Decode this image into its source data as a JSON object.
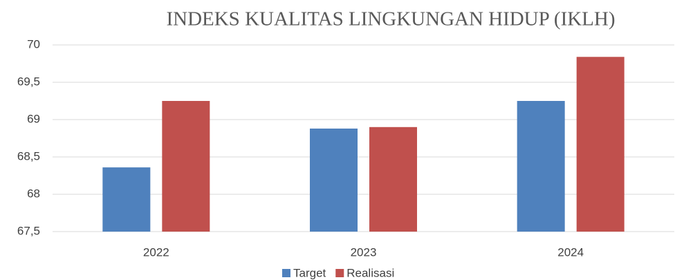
{
  "chart_data": {
    "type": "bar",
    "title": "INDEKS KUALITAS LINGKUNGAN HIDUP (IKLH)",
    "categories": [
      "2022",
      "2023",
      "2024"
    ],
    "series": [
      {
        "name": "Target",
        "color": "#4f81bd",
        "values": [
          68.36,
          68.88,
          69.25
        ]
      },
      {
        "name": "Realisasi",
        "color": "#c0504d",
        "values": [
          69.25,
          68.9,
          69.84
        ]
      }
    ],
    "ylim": [
      67.5,
      70
    ],
    "yticks": [
      {
        "value": 67.5,
        "label": "67,5"
      },
      68,
      {
        "value": 68.5,
        "label": "68,5"
      },
      69,
      {
        "value": 69.5,
        "label": "69,5"
      },
      70
    ],
    "grid": true,
    "legend": "bottom"
  }
}
